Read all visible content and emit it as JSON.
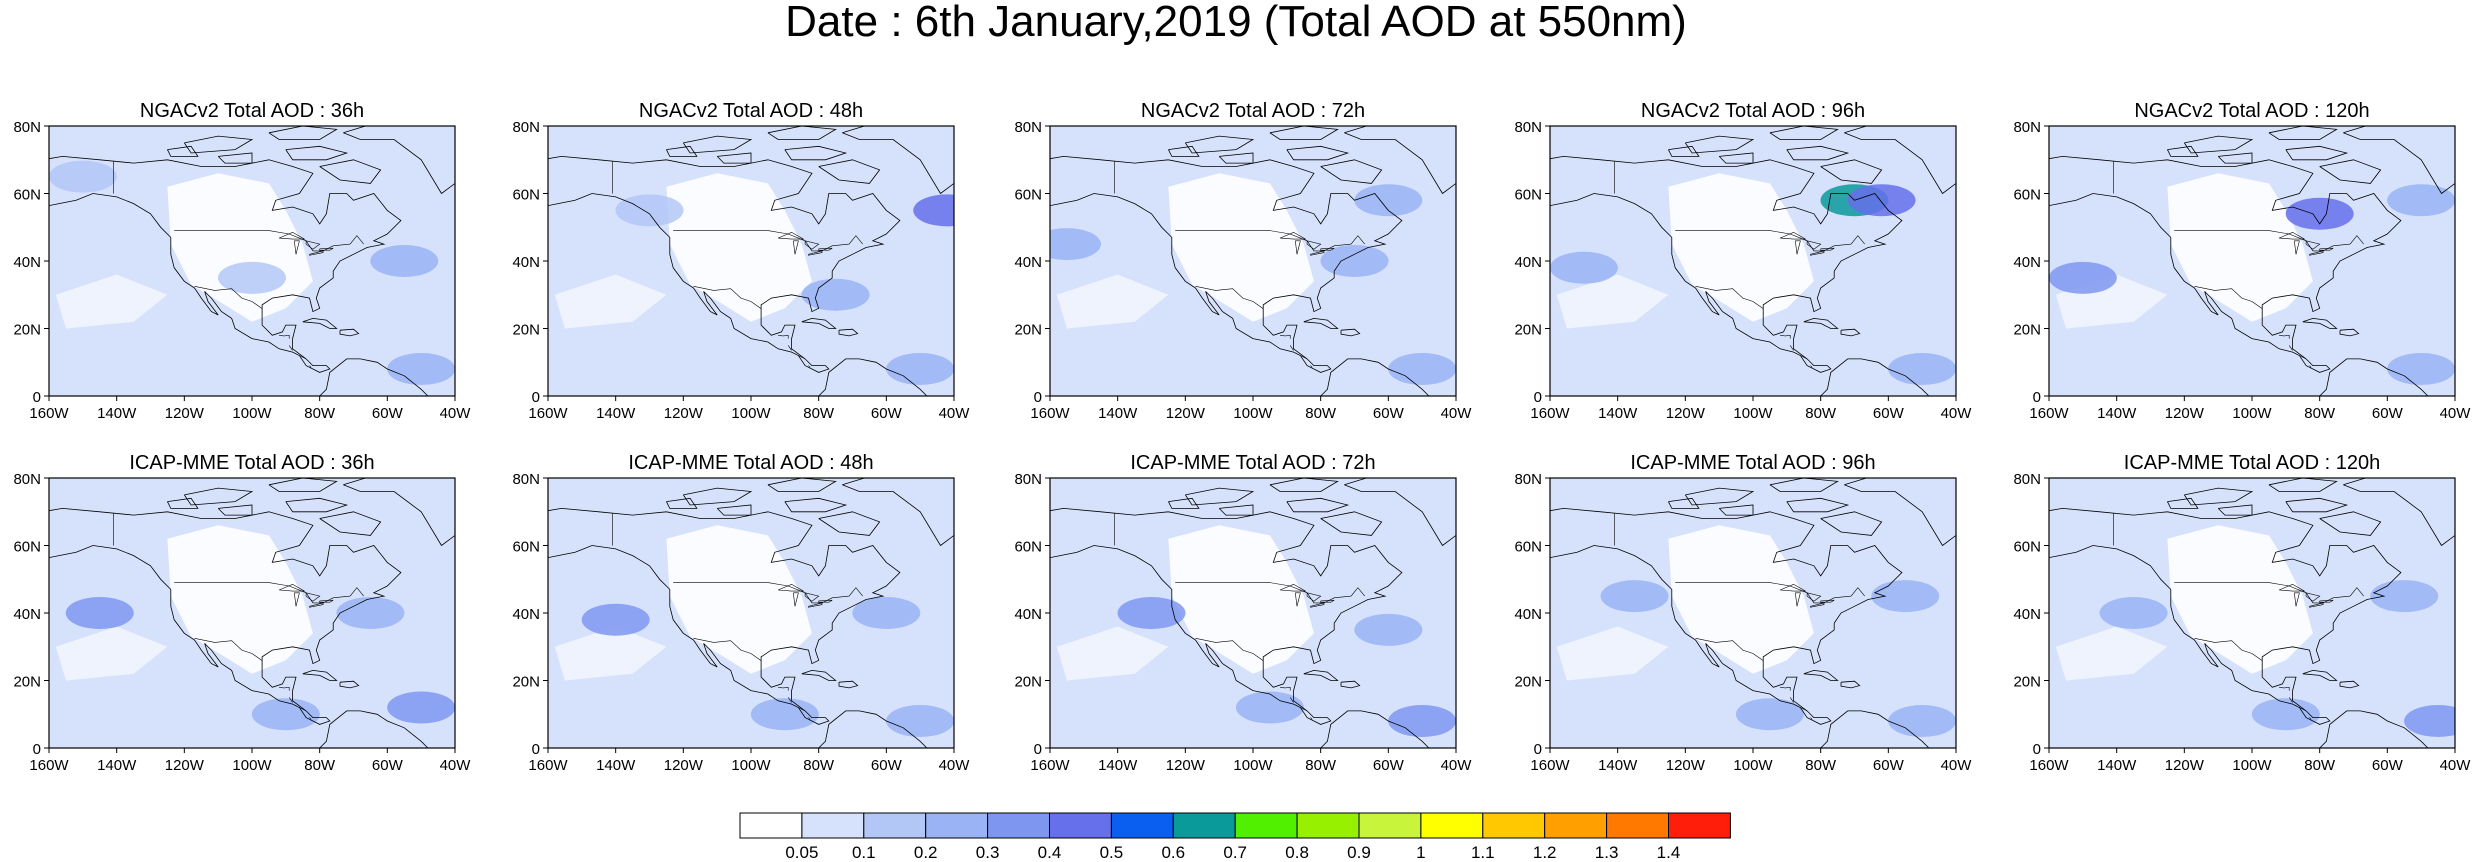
{
  "title": "Date : 6th January,2019 (Total AOD at 550nm)",
  "lat_ticks": [
    "0",
    "20N",
    "40N",
    "60N",
    "80N"
  ],
  "lon_ticks": [
    "160W",
    "140W",
    "120W",
    "100W",
    "80W",
    "60W",
    "40W"
  ],
  "domain": {
    "lon_range": [
      -160,
      -40
    ],
    "lat_range": [
      0,
      80
    ]
  },
  "panels": [
    {
      "model": "NGACv2",
      "lead": "36h",
      "title": "NGACv2 Total AOD : 36h",
      "blobs": [
        {
          "lon": -150,
          "lat": 65,
          "value": 0.1
        },
        {
          "lon": -55,
          "lat": 40,
          "value": 0.2
        },
        {
          "lon": -100,
          "lat": 35,
          "value": 0.1
        },
        {
          "lon": -50,
          "lat": 8,
          "value": 0.2
        }
      ]
    },
    {
      "model": "NGACv2",
      "lead": "48h",
      "title": "NGACv2 Total AOD : 48h",
      "blobs": [
        {
          "lon": -42,
          "lat": 55,
          "value": 0.4
        },
        {
          "lon": -130,
          "lat": 55,
          "value": 0.1
        },
        {
          "lon": -75,
          "lat": 30,
          "value": 0.2
        },
        {
          "lon": -50,
          "lat": 8,
          "value": 0.2
        }
      ]
    },
    {
      "model": "NGACv2",
      "lead": "72h",
      "title": "NGACv2 Total AOD : 72h",
      "blobs": [
        {
          "lon": -155,
          "lat": 45,
          "value": 0.2
        },
        {
          "lon": -70,
          "lat": 40,
          "value": 0.2
        },
        {
          "lon": -60,
          "lat": 58,
          "value": 0.2
        },
        {
          "lon": -50,
          "lat": 8,
          "value": 0.2
        }
      ]
    },
    {
      "model": "NGACv2",
      "lead": "96h",
      "title": "NGACv2 Total AOD : 96h",
      "blobs": [
        {
          "lon": -70,
          "lat": 58,
          "value": 0.6
        },
        {
          "lon": -62,
          "lat": 58,
          "value": 0.4
        },
        {
          "lon": -150,
          "lat": 38,
          "value": 0.2
        },
        {
          "lon": -50,
          "lat": 8,
          "value": 0.2
        }
      ]
    },
    {
      "model": "NGACv2",
      "lead": "120h",
      "title": "NGACv2 Total AOD : 120h",
      "blobs": [
        {
          "lon": -80,
          "lat": 54,
          "value": 0.4
        },
        {
          "lon": -50,
          "lat": 58,
          "value": 0.2
        },
        {
          "lon": -150,
          "lat": 35,
          "value": 0.3
        },
        {
          "lon": -50,
          "lat": 8,
          "value": 0.2
        }
      ]
    },
    {
      "model": "ICAP-MME",
      "lead": "36h",
      "title": "ICAP-MME Total AOD : 36h",
      "blobs": [
        {
          "lon": -145,
          "lat": 40,
          "value": 0.3
        },
        {
          "lon": -90,
          "lat": 10,
          "value": 0.2
        },
        {
          "lon": -65,
          "lat": 40,
          "value": 0.2
        },
        {
          "lon": -50,
          "lat": 12,
          "value": 0.3
        }
      ]
    },
    {
      "model": "ICAP-MME",
      "lead": "48h",
      "title": "ICAP-MME Total AOD : 48h",
      "blobs": [
        {
          "lon": -140,
          "lat": 38,
          "value": 0.3
        },
        {
          "lon": -60,
          "lat": 40,
          "value": 0.2
        },
        {
          "lon": -90,
          "lat": 10,
          "value": 0.2
        },
        {
          "lon": -50,
          "lat": 8,
          "value": 0.2
        }
      ]
    },
    {
      "model": "ICAP-MME",
      "lead": "72h",
      "title": "ICAP-MME Total AOD : 72h",
      "blobs": [
        {
          "lon": -130,
          "lat": 40,
          "value": 0.3
        },
        {
          "lon": -60,
          "lat": 35,
          "value": 0.2
        },
        {
          "lon": -95,
          "lat": 12,
          "value": 0.2
        },
        {
          "lon": -50,
          "lat": 8,
          "value": 0.3
        }
      ]
    },
    {
      "model": "ICAP-MME",
      "lead": "96h",
      "title": "ICAP-MME Total AOD : 96h",
      "blobs": [
        {
          "lon": -135,
          "lat": 45,
          "value": 0.2
        },
        {
          "lon": -55,
          "lat": 45,
          "value": 0.2
        },
        {
          "lon": -95,
          "lat": 10,
          "value": 0.2
        },
        {
          "lon": -50,
          "lat": 8,
          "value": 0.2
        }
      ]
    },
    {
      "model": "ICAP-MME",
      "lead": "120h",
      "title": "ICAP-MME Total AOD : 120h",
      "blobs": [
        {
          "lon": -135,
          "lat": 40,
          "value": 0.2
        },
        {
          "lon": -55,
          "lat": 45,
          "value": 0.2
        },
        {
          "lon": -90,
          "lat": 10,
          "value": 0.2
        },
        {
          "lon": -45,
          "lat": 8,
          "value": 0.3
        }
      ]
    }
  ],
  "colorbar": {
    "colors": [
      "#ffffff",
      "#d6e2fb",
      "#b3c7f7",
      "#99b3f5",
      "#7f96f0",
      "#6570ea",
      "#0a5ef0",
      "#0a9a9a",
      "#50f000",
      "#96f000",
      "#c8f53c",
      "#ffff00",
      "#ffc800",
      "#ffa000",
      "#ff7800",
      "#ff1e0a"
    ],
    "labels": [
      "0.05",
      "0.1",
      "0.2",
      "0.3",
      "0.4",
      "0.5",
      "0.6",
      "0.7",
      "0.8",
      "0.9",
      "1",
      "1.1",
      "1.2",
      "1.3",
      "1.4"
    ]
  }
}
